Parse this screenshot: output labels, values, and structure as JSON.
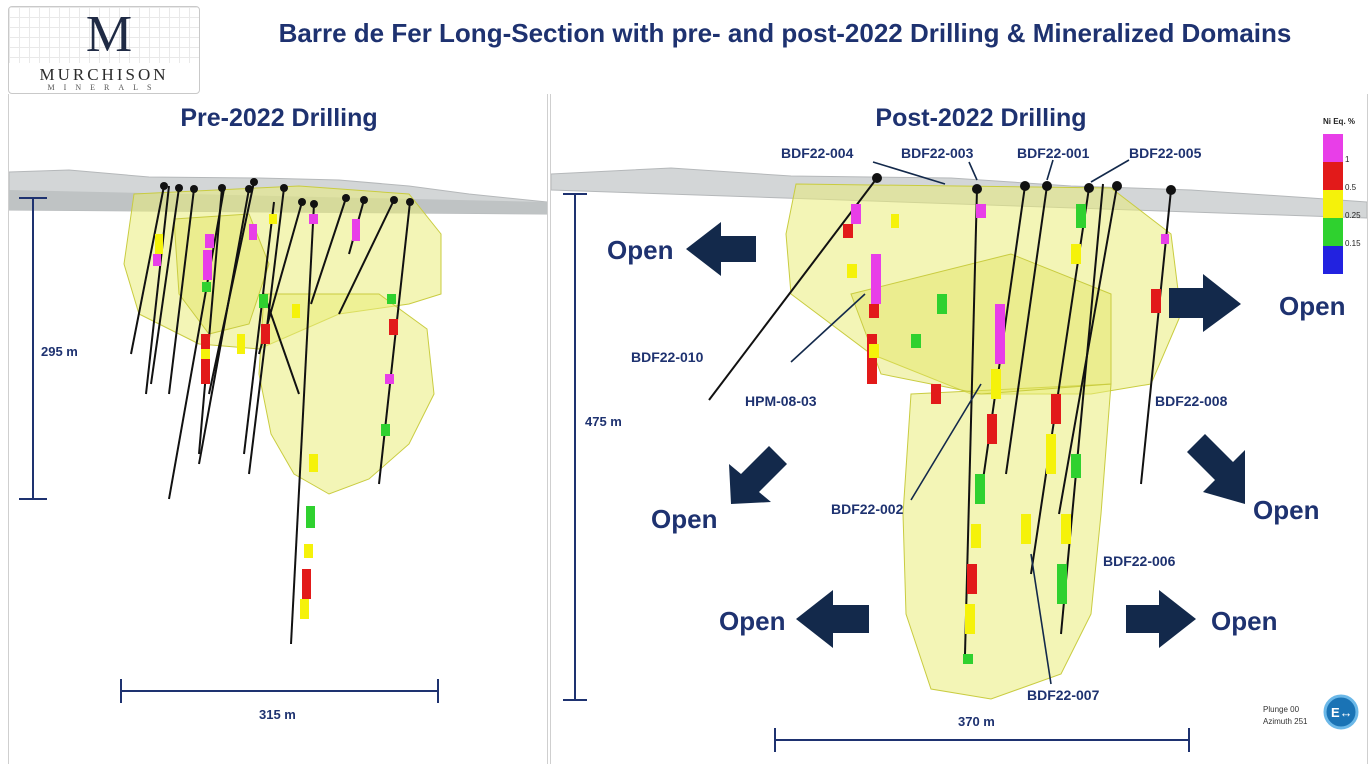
{
  "header": {
    "logo_text": "MURCHISON",
    "logo_subtext": "MINERALS",
    "title": "Barre de Fer Long-Section with pre- and post-2022 Drilling & Mineralized Domains"
  },
  "left_panel": {
    "title": "Pre-2022 Drilling",
    "vertical_scale": "295 m",
    "horizontal_scale": "315 m"
  },
  "right_panel": {
    "title": "Post-2022 Drilling",
    "vertical_scale": "475 m",
    "horizontal_scale": "370 m",
    "hole_labels": {
      "bdf22_004": "BDF22-004",
      "bdf22_003": "BDF22-003",
      "bdf22_001": "BDF22-001",
      "bdf22_005": "BDF22-005",
      "bdf22_010": "BDF22-010",
      "hpm_08_03": "HPM-08-03",
      "bdf22_002": "BDF22-002",
      "bdf22_008": "BDF22-008",
      "bdf22_006": "BDF22-006",
      "bdf22_007": "BDF22-007"
    },
    "open_label": "Open",
    "legend": {
      "title": "Ni Eq. %",
      "entries": [
        {
          "label": "1",
          "color": "#e83ee8"
        },
        {
          "label": "0.5",
          "color": "#e21a1a"
        },
        {
          "label": "0.25",
          "color": "#f5f20a"
        },
        {
          "label": "0.15",
          "color": "#2fd12f"
        },
        {
          "label": "",
          "color": "#2222e0"
        }
      ]
    },
    "plunge": "Plunge 00",
    "azimuth": "Azimuth 251",
    "badge": "E↔"
  },
  "colors": {
    "title_blue": "#1e3270",
    "arrow_navy": "#13294b",
    "domain_fill": "#eaec7a",
    "surface_grey": "#c9cccd"
  }
}
